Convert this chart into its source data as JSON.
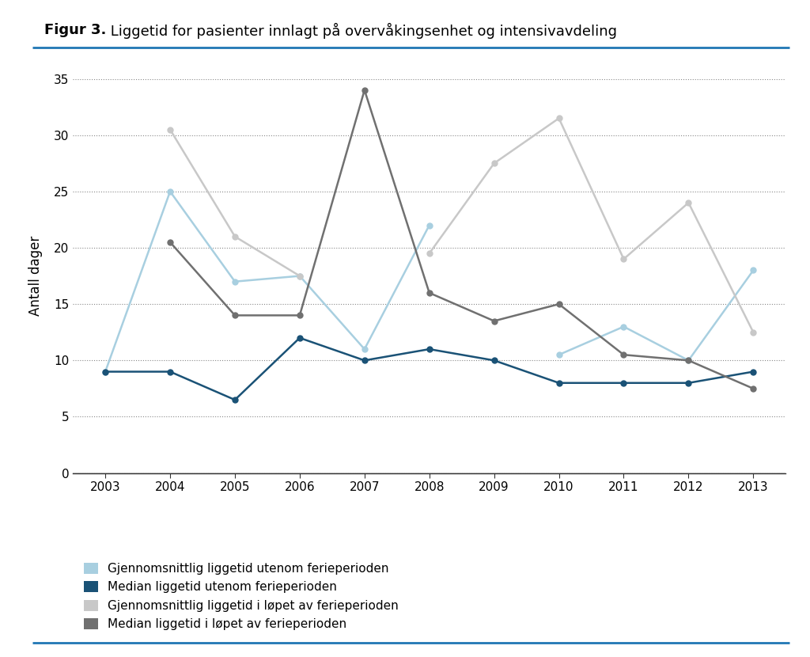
{
  "title_bold": "Figur 3.",
  "title_rest": " Liggetid for pasienter innlagt på overvåkingsenhet og intensivavdeling",
  "ylabel": "Antall dager",
  "years": [
    2003,
    2004,
    2005,
    2006,
    2007,
    2008,
    2009,
    2010,
    2011,
    2012,
    2013
  ],
  "gjennomsnitt_utenom": [
    9,
    25,
    17,
    17.5,
    11,
    22,
    null,
    10.5,
    13,
    10,
    18
  ],
  "median_utenom": [
    9,
    9,
    6.5,
    12,
    10,
    11,
    10,
    8,
    8,
    8,
    9
  ],
  "gjennomsnitt_ferie": [
    null,
    30.5,
    21,
    17.5,
    null,
    19.5,
    27.5,
    31.5,
    19,
    24,
    12.5
  ],
  "median_ferie": [
    null,
    20.5,
    14,
    14,
    34,
    16,
    13.5,
    15,
    10.5,
    10,
    7.5
  ],
  "color_gjennomsnitt_utenom": "#a8cfe0",
  "color_median_utenom": "#1a5276",
  "color_gjennomsnitt_ferie": "#c8c8c8",
  "color_median_ferie": "#707070",
  "ylim": [
    0,
    35
  ],
  "yticks": [
    0,
    5,
    10,
    15,
    20,
    25,
    30,
    35
  ],
  "legend_labels": [
    "Gjennomsnittlig liggetid utenom ferieperioden",
    "Median liggetid utenom ferieperioden",
    "Gjennomsnittlig liggetid i løpet av ferieperioden",
    "Median liggetid i løpet av ferieperioden"
  ],
  "background_color": "#ffffff",
  "title_line_color": "#2077b4",
  "grid_color": "#888888",
  "title_fontsize": 13,
  "axis_fontsize": 11,
  "ylabel_fontsize": 12,
  "legend_fontsize": 11,
  "linewidth": 1.8,
  "markersize": 5
}
